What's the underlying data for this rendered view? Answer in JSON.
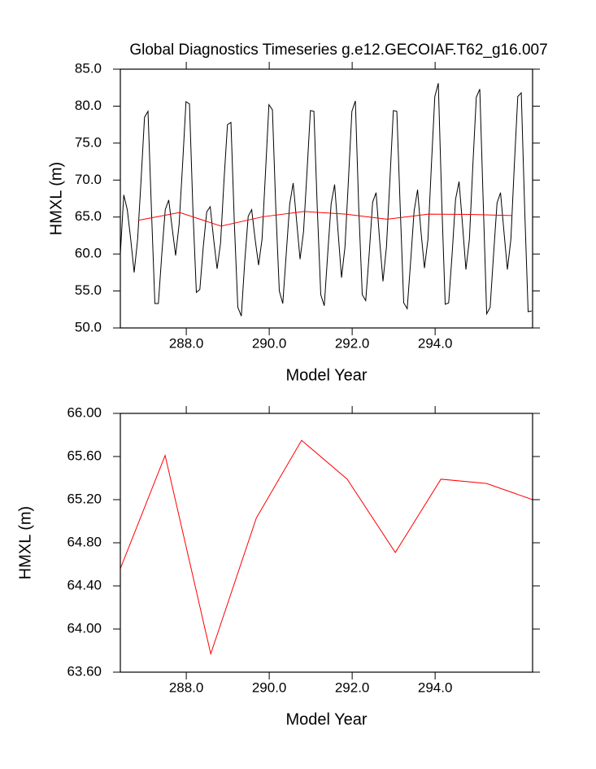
{
  "chart_data": [
    {
      "type": "line",
      "title": "Global Diagnostics Timeseries g.e12.GECOIAF.T62_g16.007",
      "x_label": "Model Year",
      "y_label": "HMXL (m)",
      "xlim": [
        286.41,
        296.35
      ],
      "ylim": [
        50,
        85
      ],
      "xticks": [
        {
          "value": 288,
          "label": "288.0"
        },
        {
          "value": 290,
          "label": "290.0"
        },
        {
          "value": 292,
          "label": "292.0"
        },
        {
          "value": 294,
          "label": "294.0"
        }
      ],
      "yticks": [
        {
          "value": 50,
          "label": "50.0"
        },
        {
          "value": 55,
          "label": "55.0"
        },
        {
          "value": 60,
          "label": "60.0"
        },
        {
          "value": 65,
          "label": "65.0"
        },
        {
          "value": 70,
          "label": "70.0"
        },
        {
          "value": 75,
          "label": "75.0"
        },
        {
          "value": 80,
          "label": "80.0"
        },
        {
          "value": 85,
          "label": "85.0"
        }
      ],
      "series": [
        {
          "color": "#000000",
          "x": [
            286.41,
            286.493,
            286.577,
            286.66,
            286.743,
            286.827,
            286.91,
            286.993,
            287.077,
            287.16,
            287.243,
            287.327,
            287.41,
            287.493,
            287.577,
            287.66,
            287.743,
            287.827,
            287.91,
            287.993,
            288.077,
            288.16,
            288.243,
            288.327,
            288.41,
            288.493,
            288.577,
            288.66,
            288.743,
            288.827,
            288.91,
            288.993,
            289.077,
            289.16,
            289.243,
            289.327,
            289.41,
            289.493,
            289.577,
            289.66,
            289.743,
            289.827,
            289.91,
            289.993,
            290.077,
            290.16,
            290.243,
            290.327,
            290.41,
            290.493,
            290.577,
            290.66,
            290.743,
            290.827,
            290.91,
            290.993,
            291.077,
            291.16,
            291.243,
            291.327,
            291.41,
            291.493,
            291.577,
            291.66,
            291.743,
            291.827,
            291.91,
            291.993,
            292.077,
            292.16,
            292.243,
            292.327,
            292.41,
            292.493,
            292.577,
            292.66,
            292.743,
            292.827,
            292.91,
            292.993,
            293.077,
            293.16,
            293.243,
            293.327,
            293.41,
            293.493,
            293.577,
            293.66,
            293.743,
            293.827,
            293.91,
            293.993,
            294.077,
            294.16,
            294.243,
            294.327,
            294.41,
            294.493,
            294.577,
            294.66,
            294.743,
            294.827,
            294.91,
            294.993,
            295.077,
            295.16,
            295.243,
            295.327,
            295.41,
            295.493,
            295.577,
            295.66,
            295.743,
            295.827,
            295.91,
            295.993,
            296.077,
            296.16,
            296.243,
            296.327
          ],
          "values": [
            60,
            68,
            66,
            62,
            57.5,
            62,
            70,
            78.5,
            79.3,
            66,
            53.3,
            53.3,
            60,
            66,
            67.3,
            63.5,
            59.8,
            64,
            72,
            80.6,
            80.3,
            66,
            54.8,
            55.2,
            61,
            65.7,
            66.4,
            62,
            58,
            61.5,
            70,
            77.5,
            77.8,
            64,
            52.8,
            51.6,
            59,
            65.1,
            66,
            62,
            58.5,
            62,
            71,
            80.2,
            79.5,
            66,
            55,
            53.3,
            60,
            66.7,
            69.6,
            64.5,
            59.3,
            63,
            71,
            79.4,
            79.3,
            66,
            54.5,
            53,
            60,
            66.8,
            69.4,
            63,
            56.8,
            61,
            70,
            79.3,
            80.7,
            66,
            54.5,
            53.7,
            60,
            67,
            68.3,
            62,
            56.3,
            61,
            70,
            79.4,
            79.3,
            66,
            53.4,
            52.6,
            59,
            65.8,
            68.7,
            63,
            58.1,
            62,
            72,
            81.3,
            83.1,
            67,
            53.2,
            53.4,
            60,
            67.4,
            69.8,
            64,
            57.9,
            62,
            72,
            81.2,
            82.3,
            67,
            51.9,
            52.8,
            60,
            66.9,
            68.3,
            63,
            57.9,
            62,
            72,
            81.3,
            81.8,
            66,
            52.2,
            52.3
          ]
        },
        {
          "color": "#ff0000",
          "x": [
            286.84,
            287.84,
            288.84,
            289.84,
            290.84,
            291.84,
            292.84,
            293.84,
            294.84,
            295.84
          ],
          "values": [
            64.56,
            65.61,
            63.77,
            65.03,
            65.75,
            65.39,
            64.71,
            65.39,
            65.35,
            65.2
          ]
        }
      ]
    },
    {
      "type": "line",
      "x_label": "Model Year",
      "y_label": "HMXL (m)",
      "xlim": [
        286.41,
        296.35
      ],
      "ylim": [
        63.6,
        66.0
      ],
      "xticks": [
        {
          "value": 288,
          "label": "288.0"
        },
        {
          "value": 290,
          "label": "290.0"
        },
        {
          "value": 292,
          "label": "292.0"
        },
        {
          "value": 294,
          "label": "294.0"
        }
      ],
      "yticks": [
        {
          "value": 63.6,
          "label": "63.60"
        },
        {
          "value": 64.0,
          "label": "64.00"
        },
        {
          "value": 64.4,
          "label": "64.40"
        },
        {
          "value": 64.8,
          "label": "64.80"
        },
        {
          "value": 65.2,
          "label": "65.20"
        },
        {
          "value": 65.6,
          "label": "65.60"
        },
        {
          "value": 66.0,
          "label": "66.00"
        }
      ],
      "series": [
        {
          "color": "#ff0000",
          "x": [
            286.41,
            287.49,
            288.59,
            289.69,
            290.78,
            291.88,
            293.04,
            294.14,
            295.24,
            296.35
          ],
          "values": [
            64.56,
            65.61,
            63.77,
            65.03,
            65.75,
            65.39,
            64.71,
            65.39,
            65.35,
            65.2
          ]
        }
      ]
    }
  ]
}
